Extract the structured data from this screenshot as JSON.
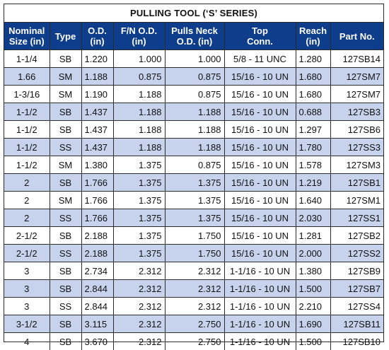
{
  "title": "PULLING TOOL (‘S’ SERIES)",
  "columns": [
    [
      "Nominal",
      "Size (in)"
    ],
    [
      "Type",
      ""
    ],
    [
      "O.D.",
      "(in)"
    ],
    [
      "F/N O.D.",
      "(in)"
    ],
    [
      "Pulls Neck",
      "O.D. (in)"
    ],
    [
      "Top",
      "Conn."
    ],
    [
      "Reach",
      "(in)"
    ],
    [
      "Part No.",
      ""
    ]
  ],
  "rows": [
    [
      "1-1/4",
      "SB",
      "1.220",
      "1.000",
      "1.000",
      "5/8 - 11 UNC",
      "1.280",
      "127SB14"
    ],
    [
      "1.66",
      "SM",
      "1.188",
      "0.875",
      "0.875",
      "15/16 - 10 UN",
      "1.680",
      "127SM7"
    ],
    [
      "1-3/16",
      "SM",
      "1.190",
      "1.188",
      "0.875",
      "15/16 - 10 UN",
      "1.680",
      "127SM7"
    ],
    [
      "1-1/2",
      "SB",
      "1.437",
      "1.188",
      "1.188",
      "15/16 - 10 UN",
      "0.688",
      "127SB3"
    ],
    [
      "1-1/2",
      "SB",
      "1.437",
      "1.188",
      "1.188",
      "15/16 - 10 UN",
      "1.297",
      "127SB6"
    ],
    [
      "1-1/2",
      "SS",
      "1.437",
      "1.188",
      "1.188",
      "15/16 - 10 UN",
      "1.780",
      "127SS3"
    ],
    [
      "1-1/2",
      "SM",
      "1.380",
      "1.375",
      "0.875",
      "15/16 - 10 UN",
      "1.578",
      "127SM3"
    ],
    [
      "2",
      "SB",
      "1.766",
      "1.375",
      "1.375",
      "15/16 - 10 UN",
      "1.219",
      "127SB1"
    ],
    [
      "2",
      "SM",
      "1.766",
      "1.375",
      "1.375",
      "15/16 - 10 UN",
      "1.640",
      "127SM1"
    ],
    [
      "2",
      "SS",
      "1.766",
      "1.375",
      "1.375",
      "15/16 - 10 UN",
      "2.030",
      "127SS1"
    ],
    [
      "2-1/2",
      "SB",
      "2.188",
      "1.375",
      "1.750",
      "15/16 - 10 UN",
      "1.281",
      "127SB2"
    ],
    [
      "2-1/2",
      "SS",
      "2.188",
      "1.375",
      "1.750",
      "15/16 - 10 UN",
      "2.000",
      "127SS2"
    ],
    [
      "3",
      "SB",
      "2.734",
      "2.312",
      "2.312",
      "1-1/16 - 10 UN",
      "1.380",
      "127SB9"
    ],
    [
      "3",
      "SB",
      "2.844",
      "2.312",
      "2.312",
      "1-1/16 - 10 UN",
      "1.500",
      "127SB7"
    ],
    [
      "3",
      "SS",
      "2.844",
      "2.312",
      "2.312",
      "1-1/16 - 10 UN",
      "2.210",
      "127SS4"
    ],
    [
      "3-1/2",
      "SB",
      "3.115",
      "2.312",
      "2.750",
      "1-1/16 - 10 UN",
      "1.690",
      "127SB11"
    ],
    [
      "4",
      "SB",
      "3.670",
      "2.312",
      "2.750",
      "1-1/16 - 10 UN",
      "1.500",
      "127SB10"
    ]
  ],
  "colors": {
    "header_bg": "#0e3d8c",
    "header_text": "#ffffff",
    "stripe_bg": "#c7d3ec",
    "border": "#2b2b2b"
  }
}
